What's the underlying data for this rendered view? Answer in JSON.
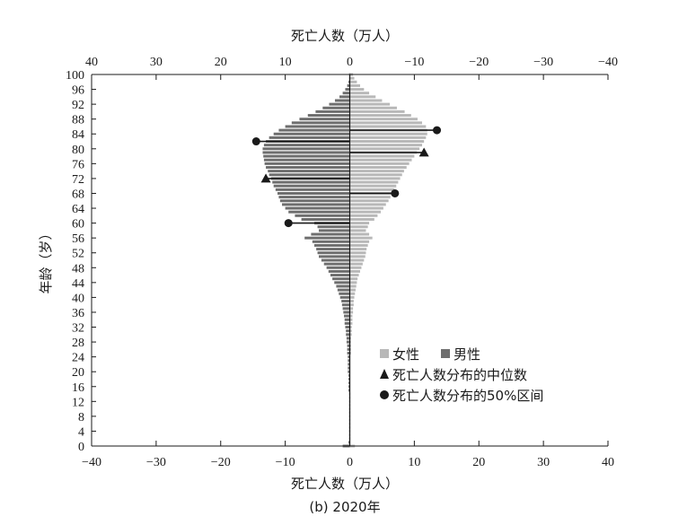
{
  "chart_data": {
    "type": "bar",
    "orientation": "horizontal",
    "layout": "population-pyramid",
    "x_top_label": "死亡人数（万人）",
    "x_bottom_label": "死亡人数（万人）",
    "ylabel": "年龄（岁）",
    "caption": "(b) 2020年",
    "xlim": [
      -40,
      40
    ],
    "x_bottom_ticks": [
      "−40",
      "−30",
      "−20",
      "−10",
      "0",
      "10",
      "20",
      "30",
      "40"
    ],
    "x_top_ticks": [
      "40",
      "30",
      "20",
      "10",
      "0",
      "−10",
      "−20",
      "−30",
      "−40"
    ],
    "ylim": [
      0,
      100
    ],
    "y_ticks": [
      "0",
      "4",
      "8",
      "12",
      "16",
      "20",
      "24",
      "28",
      "32",
      "36",
      "40",
      "44",
      "48",
      "52",
      "56",
      "60",
      "64",
      "68",
      "72",
      "76",
      "80",
      "84",
      "88",
      "92",
      "96",
      "100"
    ],
    "ages": [
      0,
      1,
      2,
      3,
      4,
      5,
      6,
      7,
      8,
      9,
      10,
      11,
      12,
      13,
      14,
      15,
      16,
      17,
      18,
      19,
      20,
      21,
      22,
      23,
      24,
      25,
      26,
      27,
      28,
      29,
      30,
      31,
      32,
      33,
      34,
      35,
      36,
      37,
      38,
      39,
      40,
      41,
      42,
      43,
      44,
      45,
      46,
      47,
      48,
      49,
      50,
      51,
      52,
      53,
      54,
      55,
      56,
      57,
      58,
      59,
      60,
      61,
      62,
      63,
      64,
      65,
      66,
      67,
      68,
      69,
      70,
      71,
      72,
      73,
      74,
      75,
      76,
      77,
      78,
      79,
      80,
      81,
      82,
      83,
      84,
      85,
      86,
      87,
      88,
      89,
      90,
      91,
      92,
      93,
      94,
      95,
      96,
      97,
      98,
      99,
      100
    ],
    "series": [
      {
        "name": "男性",
        "color": "#6e6e6e",
        "values": [
          1.1,
          0.2,
          0.1,
          0.1,
          0.1,
          0.1,
          0.1,
          0.1,
          0.1,
          0.1,
          0.1,
          0.1,
          0.1,
          0.1,
          0.1,
          0.2,
          0.2,
          0.2,
          0.2,
          0.2,
          0.3,
          0.3,
          0.3,
          0.3,
          0.3,
          0.4,
          0.4,
          0.4,
          0.5,
          0.5,
          0.6,
          0.6,
          0.7,
          0.8,
          0.8,
          0.9,
          1.0,
          1.1,
          1.2,
          1.3,
          1.5,
          1.7,
          1.9,
          2.1,
          2.4,
          2.7,
          3.0,
          3.3,
          3.6,
          4.0,
          4.4,
          4.8,
          5.0,
          5.2,
          5.5,
          5.8,
          7.0,
          6.0,
          4.8,
          5.0,
          5.5,
          7.5,
          8.5,
          9.5,
          10.0,
          10.5,
          10.8,
          11.0,
          11.2,
          11.5,
          11.8,
          12.0,
          12.2,
          12.5,
          12.7,
          13.0,
          13.2,
          13.3,
          13.4,
          13.5,
          13.5,
          13.3,
          13.0,
          12.5,
          11.8,
          11.0,
          10.0,
          9.0,
          7.8,
          6.5,
          5.3,
          4.2,
          3.2,
          2.3,
          1.6,
          1.1,
          0.7,
          0.4,
          0.2,
          0.1,
          0.1
        ]
      },
      {
        "name": "女性",
        "color": "#b8b8b8",
        "values": [
          0.8,
          0.1,
          0.1,
          0.1,
          0.1,
          0.1,
          0.1,
          0.1,
          0.1,
          0.1,
          0.1,
          0.1,
          0.1,
          0.1,
          0.1,
          0.1,
          0.1,
          0.1,
          0.1,
          0.1,
          0.1,
          0.1,
          0.1,
          0.1,
          0.1,
          0.2,
          0.2,
          0.2,
          0.2,
          0.2,
          0.3,
          0.3,
          0.3,
          0.4,
          0.4,
          0.4,
          0.5,
          0.5,
          0.6,
          0.6,
          0.7,
          0.8,
          0.9,
          1.0,
          1.1,
          1.2,
          1.4,
          1.6,
          1.8,
          2.0,
          2.2,
          2.4,
          2.5,
          2.6,
          2.8,
          3.0,
          3.5,
          3.0,
          2.5,
          2.8,
          3.0,
          3.8,
          4.3,
          4.8,
          5.2,
          5.6,
          6.0,
          6.3,
          6.6,
          6.9,
          7.2,
          7.5,
          7.8,
          8.1,
          8.4,
          8.8,
          9.2,
          9.6,
          10.0,
          10.4,
          10.8,
          11.2,
          11.5,
          11.8,
          12.0,
          12.0,
          11.8,
          11.2,
          10.5,
          9.5,
          8.5,
          7.3,
          6.2,
          5.0,
          4.0,
          3.0,
          2.2,
          1.6,
          1.1,
          0.7,
          0.5
        ]
      }
    ],
    "markers": [
      {
        "name": "死亡人数分布的中位数",
        "symbol": "triangle",
        "points": [
          {
            "series": "男性",
            "age": 72,
            "value": 13
          },
          {
            "series": "女性",
            "age": 79,
            "value": 11.5
          }
        ]
      },
      {
        "name": "死亡人数分布的50%区间",
        "symbol": "circle",
        "points": [
          {
            "series": "男性",
            "age": 60,
            "value": 9.5
          },
          {
            "series": "男性",
            "age": 82,
            "value": 14.5
          },
          {
            "series": "女性",
            "age": 68,
            "value": 7.0
          },
          {
            "series": "女性",
            "age": 85,
            "value": 13.5
          }
        ]
      }
    ],
    "legend": {
      "position": "bottom-right",
      "items": [
        {
          "label": "女性",
          "symbol": "square",
          "color": "#b8b8b8"
        },
        {
          "label": "男性",
          "symbol": "square",
          "color": "#6e6e6e"
        },
        {
          "label": "死亡人数分布的中位数",
          "symbol": "triangle",
          "color": "#1a1a1a"
        },
        {
          "label": "死亡人数分布的50%区间",
          "symbol": "circle",
          "color": "#1a1a1a"
        }
      ]
    }
  }
}
